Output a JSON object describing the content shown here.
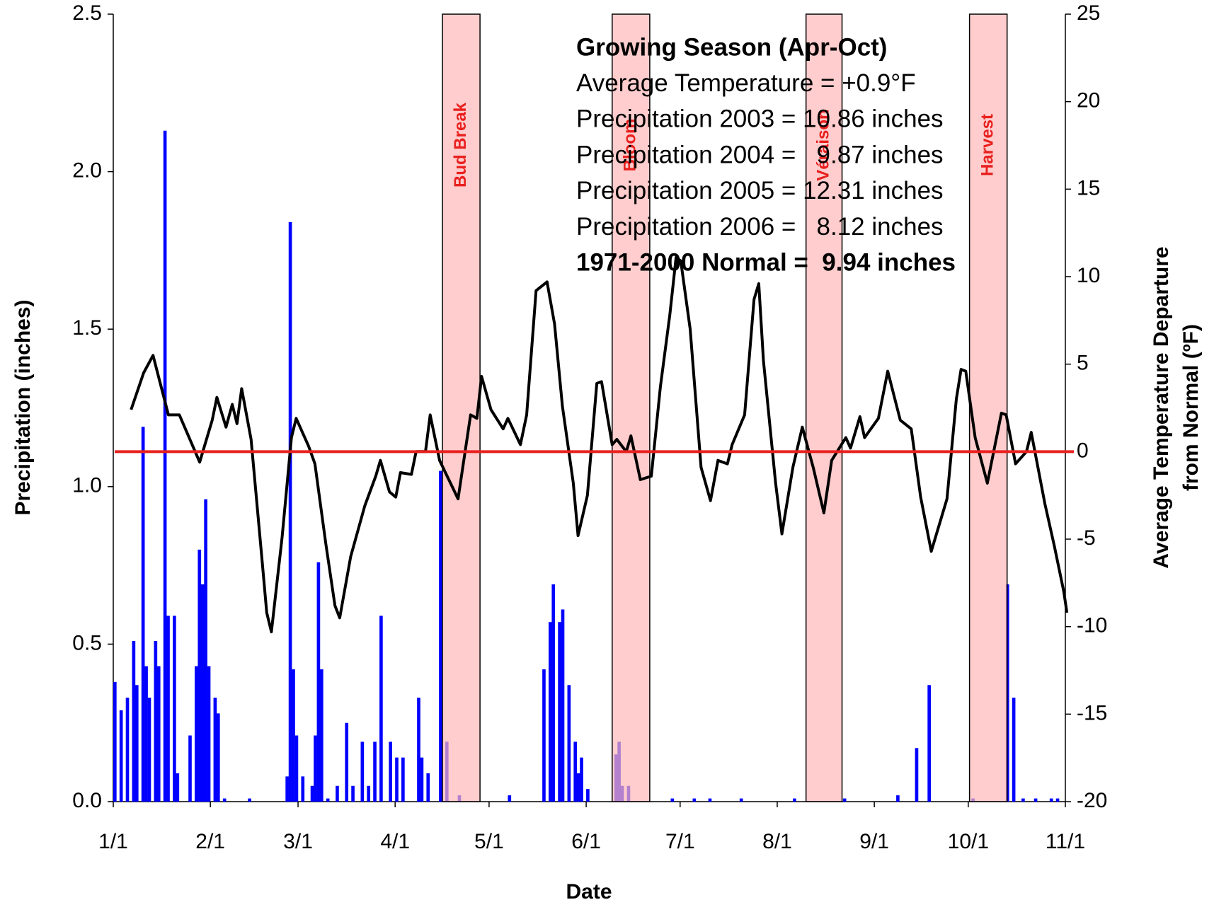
{
  "chart_data": {
    "type": "combo",
    "xlabel": "Date",
    "ylabel": "Precipitation (inches)",
    "y2label": [
      "Average Temperature Departure",
      "from Normal (ºF)"
    ],
    "xlim": [
      0,
      304
    ],
    "xticks": [
      {
        "value": 0,
        "label": "1/1"
      },
      {
        "value": 31,
        "label": "2/1"
      },
      {
        "value": 59,
        "label": "3/1"
      },
      {
        "value": 90,
        "label": "4/1"
      },
      {
        "value": 120,
        "label": "5/1"
      },
      {
        "value": 151,
        "label": "6/1"
      },
      {
        "value": 181,
        "label": "7/1"
      },
      {
        "value": 212,
        "label": "8/1"
      },
      {
        "value": 243,
        "label": "9/1"
      },
      {
        "value": 273,
        "label": "10/1"
      },
      {
        "value": 304,
        "label": "11/1"
      }
    ],
    "ylim": [
      0,
      2.5
    ],
    "yticks": [
      {
        "value": 0,
        "label": "0.0"
      },
      0.5,
      {
        "value": 1,
        "label": "1.0"
      },
      1.5,
      {
        "value": 2,
        "label": "2.0"
      },
      2.5
    ],
    "y2lim": [
      -20,
      25
    ],
    "y2ticks": [
      -20,
      -15,
      -10,
      -5,
      0,
      5,
      10,
      15,
      20,
      25
    ],
    "series": [
      {
        "type": "bar",
        "color": "#0000ff",
        "x": [
          0,
          2,
          4,
          6,
          7,
          9,
          10,
          11,
          13,
          14,
          16,
          17,
          19,
          20,
          24,
          26,
          27,
          28,
          29,
          30,
          32,
          33,
          35,
          43,
          55,
          56,
          57,
          58,
          60,
          63,
          64,
          65,
          66,
          68,
          71,
          74,
          76,
          79,
          81,
          83,
          85,
          88,
          90,
          92,
          97,
          98,
          100,
          104,
          106,
          110,
          126,
          137,
          139,
          140,
          142,
          143,
          145,
          147,
          148,
          149,
          151,
          160,
          161,
          162,
          164,
          178,
          185,
          190,
          200,
          217,
          233,
          250,
          256,
          260,
          274,
          285,
          287,
          290,
          294,
          299,
          301
        ],
        "values": [
          0.38,
          0.29,
          0.33,
          0.51,
          0.37,
          1.19,
          0.43,
          0.33,
          0.51,
          0.43,
          2.13,
          0.59,
          0.59,
          0.09,
          0.21,
          0.43,
          0.8,
          0.69,
          0.96,
          0.43,
          0.33,
          0.28,
          0.01,
          0.01,
          0.08,
          1.84,
          0.42,
          0.21,
          0.08,
          0.05,
          0.21,
          0.76,
          0.42,
          0.01,
          0.05,
          0.25,
          0.05,
          0.19,
          0.05,
          0.19,
          0.59,
          0.19,
          0.14,
          0.14,
          0.33,
          0.14,
          0.09,
          1.05,
          0.19,
          0.02,
          0.02,
          0.42,
          0.57,
          0.69,
          0.57,
          0.61,
          0.37,
          0.19,
          0.09,
          0.14,
          0.04,
          0.15,
          0.19,
          0.05,
          0.05,
          0.01,
          0.01,
          0.01,
          0.01,
          0.01,
          0.01,
          0.02,
          0.17,
          0.37,
          0.01,
          0.69,
          0.33,
          0.01,
          0.01,
          0.01,
          0.01
        ]
      },
      {
        "type": "line",
        "axis": "y2",
        "color": "#000000",
        "x": [
          5.7,
          9.7,
          12.7,
          17.6,
          21.1,
          27.6,
          31.6,
          33.1,
          36,
          38,
          39.5,
          41,
          44,
          47.5,
          49,
          50.5,
          53.9,
          56.9,
          58.4,
          62.4,
          64.4,
          67.9,
          70.8,
          72.3,
          75.8,
          80.3,
          83.8,
          85.3,
          88.2,
          90.2,
          91.7,
          95.2,
          96.7,
          99.7,
          101.2,
          104.2,
          110.1,
          114.1,
          116.1,
          117.6,
          120.6,
          124.5,
          126,
          130,
          132,
          135,
          138.5,
          140.9,
          143.4,
          146.9,
          148.4,
          151.4,
          154.4,
          155.9,
          159.3,
          160.8,
          163.8,
          165.3,
          168.3,
          171.8,
          174.7,
          177.7,
          179.7,
          181.2,
          184.2,
          187.7,
          190.7,
          193.1,
          196.1,
          197.6,
          201.6,
          204.6,
          206.1,
          207.6,
          211.5,
          213.5,
          217,
          220,
          223.5,
          226.9,
          229.4,
          233.9,
          235.4,
          238.4,
          239.9,
          244.3,
          247.3,
          251.3,
          254.8,
          257.8,
          261.2,
          266.2,
          269.2,
          270.7,
          272.2,
          275.2,
          279.1,
          283.6,
          285.1,
          288.1,
          291.6,
          293.1,
          297.5,
          300.5,
          303.5,
          304.5
        ],
        "values": [
          2.4,
          4.5,
          5.5,
          2.1,
          2.1,
          -0.6,
          1.8,
          3.1,
          1.4,
          2.7,
          1.6,
          3.6,
          0.7,
          -6.2,
          -9.2,
          -10.3,
          -4.9,
          0.8,
          1.9,
          0.3,
          -0.7,
          -5.3,
          -8.8,
          -9.5,
          -6,
          -3.1,
          -1.4,
          -0.5,
          -2.3,
          -2.6,
          -1.2,
          -1.3,
          0,
          0,
          2.1,
          -0.5,
          -2.7,
          2.1,
          1.9,
          4.3,
          2.4,
          1.3,
          1.9,
          0.4,
          2.1,
          9.2,
          9.7,
          7.3,
          2.6,
          -1.8,
          -4.8,
          -2.5,
          3.9,
          4,
          0.4,
          0.7,
          0,
          0.9,
          -1.6,
          -1.4,
          3.7,
          7.8,
          11.1,
          10.9,
          7,
          -0.9,
          -2.8,
          -0.5,
          -0.7,
          0.4,
          2.1,
          8.7,
          9.6,
          5.2,
          -1.8,
          -4.7,
          -0.9,
          1.4,
          -0.9,
          -3.5,
          -0.5,
          0.8,
          0.2,
          2,
          0.8,
          1.9,
          4.6,
          1.8,
          1.3,
          -2.6,
          -5.7,
          -2.7,
          3,
          4.7,
          4.6,
          0.8,
          -1.8,
          2.2,
          2.1,
          -0.7,
          0,
          1.1,
          -3,
          -5.4,
          -8,
          -9.2
        ]
      }
    ],
    "reference_line": {
      "value": 0,
      "axis": "y2",
      "color": "#e8201e"
    },
    "phase_color": "#ffb8b8",
    "phases": [
      {
        "label": "Bud Break",
        "start": 105.1,
        "end": 117.1
      },
      {
        "label": "Bloom",
        "start": 159.3,
        "end": 171.3
      },
      {
        "label": "Véraison",
        "start": 221.2,
        "end": 232.7
      },
      {
        "label": "Harvest",
        "start": 273.4,
        "end": 285.4
      }
    ],
    "annotations": [
      {
        "text": "Growing Season (Apr-Oct)",
        "bold": true
      },
      {
        "text": "Average Temperature = +0.9°F",
        "bold": false
      },
      {
        "text": "Precipitation 2003 = 10.86 inches",
        "bold": false
      },
      {
        "text": "Precipitation 2004 =   9.87 inches",
        "bold": false
      },
      {
        "text": "Precipitation 2005 = 12.31 inches",
        "bold": false
      },
      {
        "text": "Precipitation 2006 =   8.12 inches",
        "bold": false
      },
      {
        "text": "1971-2000 Normal =  9.94 inches",
        "bold": true
      }
    ]
  }
}
